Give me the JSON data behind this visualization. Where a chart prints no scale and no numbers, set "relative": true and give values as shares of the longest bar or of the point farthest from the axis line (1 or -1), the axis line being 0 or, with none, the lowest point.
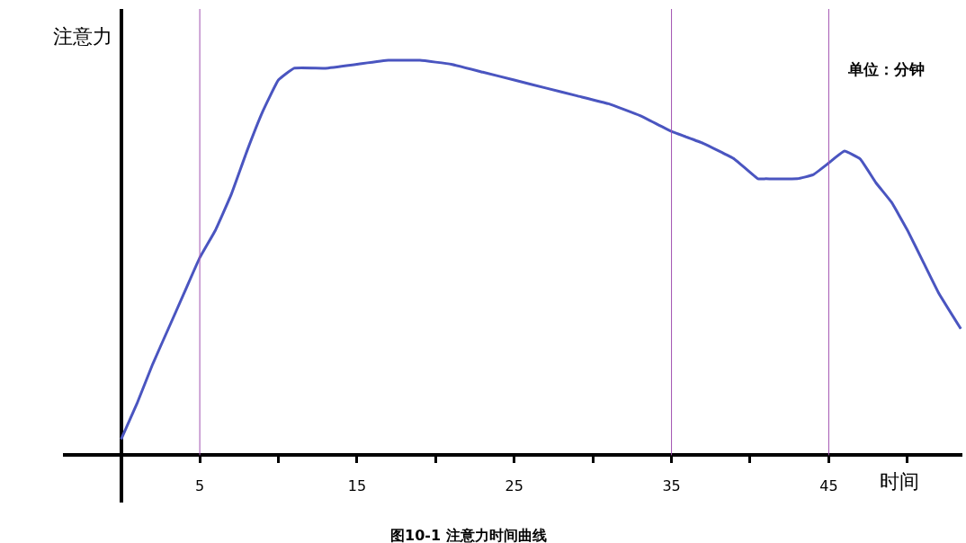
{
  "chart_data": {
    "type": "line",
    "title": "图10-1 注意力时间曲线",
    "xlabel": "时间",
    "ylabel": "注意力",
    "annotations": [
      "单位：分钟"
    ],
    "relative": true,
    "x": [
      0,
      1,
      2,
      3,
      4,
      5,
      6,
      7,
      8,
      9,
      10,
      11,
      13,
      15,
      17,
      19,
      21,
      23,
      25,
      27,
      29,
      31,
      33,
      35,
      37,
      39,
      40.5,
      41,
      43,
      44,
      45,
      46,
      47,
      48,
      49,
      50,
      51,
      52,
      53.4
    ],
    "series": [
      {
        "color": "#4a55c0",
        "values": [
          0.04,
          0.13,
          0.23,
          0.32,
          0.41,
          0.5,
          0.57,
          0.66,
          0.77,
          0.87,
          0.95,
          0.98,
          0.98,
          0.99,
          1.0,
          1.0,
          0.99,
          0.97,
          0.95,
          0.93,
          0.91,
          0.89,
          0.86,
          0.82,
          0.79,
          0.75,
          0.7,
          0.7,
          0.7,
          0.71,
          0.74,
          0.77,
          0.75,
          0.69,
          0.64,
          0.57,
          0.49,
          0.41,
          0.32
        ]
      }
    ],
    "xlim": [
      -3.7,
      53.5
    ],
    "xticks": [
      5,
      {
        "value": 10,
        "label": null
      },
      15,
      {
        "value": 20,
        "label": null
      },
      25,
      {
        "value": 30,
        "label": null
      },
      35,
      {
        "value": 40,
        "label": null
      },
      45,
      {
        "value": 50,
        "label": null
      }
    ],
    "ref_lines": [
      {
        "axis": "x",
        "value": 5,
        "color": "#a050b0"
      },
      {
        "axis": "x",
        "value": 35,
        "color": "#a050b0"
      },
      {
        "axis": "x",
        "value": 45,
        "color": "#a050b0"
      }
    ],
    "marker": "none",
    "line_style": "solid"
  }
}
